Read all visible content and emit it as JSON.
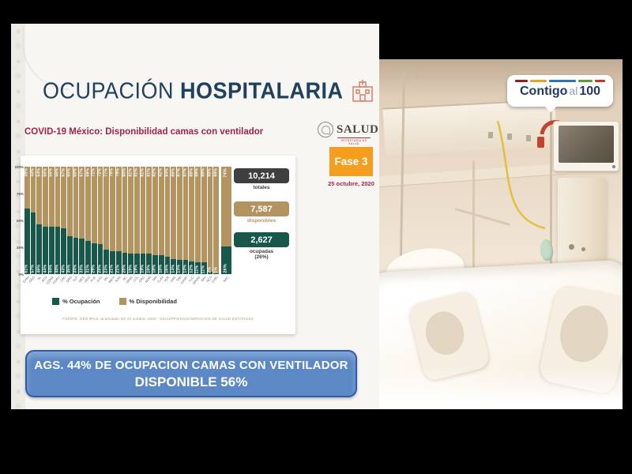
{
  "slide": {
    "title_light": "OCUPACIÓN",
    "title_bold": "HOSPITALARIA",
    "subtitle": "COVID-19 México: Disponibilidad camas con ventilador",
    "salud": {
      "word": "SALUD",
      "sub": "SECRETARÍA DE SALUD"
    },
    "fase_badge": "Fase 3",
    "date": "25 octubre, 2020",
    "stats": [
      {
        "value": "10,214",
        "label": "totales",
        "color": "#3f3f3f"
      },
      {
        "value": "7,587",
        "label": "disponibles",
        "color": "#b3935f"
      },
      {
        "value": "2,627",
        "label": "ocupadas",
        "sublabel": "(26%)",
        "color": "#17584a"
      }
    ],
    "legend": [
      {
        "label": "% Ocupación",
        "color": "#17584a"
      },
      {
        "label": "% Disponibilidad",
        "color": "#b3935f"
      }
    ],
    "source": "FUENTE: RED IRAG, acumulado del 24 octubre, 2020  -  SSA/SPPS/DGIS/SERVICIOS DE SALUD ESTATALES",
    "banner": {
      "line1": "AGS. 44% DE OCUPACION CAMAS CON VENTILADOR",
      "line2": "DISPONIBLE 56%",
      "fill": "#5c88c6",
      "border": "#2d5da9"
    }
  },
  "chart_data": {
    "type": "bar",
    "stacked": true,
    "title": "COVID-19 México: Disponibilidad camas con ventilador",
    "categories": [
      "CHIH",
      "DGO",
      "NL",
      "AGS",
      "CDMX",
      "COAH",
      "ZAC",
      "QRO",
      "SLP",
      "MEX",
      "HGO",
      "PUE",
      "GTO",
      "JAL",
      "MICH",
      "SON",
      "BC",
      "TAMS",
      "COL",
      "GRO",
      "MOR",
      "SIN",
      "TLAX",
      "VER",
      "OAX",
      "TAB",
      "CAMP",
      "YUC",
      "QROO",
      "NAY",
      "BCS",
      "CHIS",
      "NAC"
    ],
    "series": [
      {
        "name": "% Ocupación",
        "color": "#17584a",
        "values": [
          61,
          57,
          46,
          44,
          44,
          44,
          43,
          35,
          34,
          33,
          31,
          29,
          28,
          23,
          21,
          21,
          20,
          19,
          19,
          19,
          19,
          18,
          18,
          16,
          14,
          13,
          13,
          12,
          11,
          11,
          2,
          1,
          26
        ]
      },
      {
        "name": "% Disponibilidad",
        "color": "#b3935f",
        "values": [
          39,
          43,
          54,
          56,
          56,
          56,
          57,
          65,
          66,
          67,
          69,
          71,
          72,
          77,
          79,
          79,
          80,
          81,
          81,
          81,
          81,
          82,
          82,
          84,
          86,
          87,
          87,
          88,
          89,
          89,
          98,
          99,
          74
        ]
      }
    ],
    "y_ticks": [
      "100%",
      "75%",
      "50%",
      "25%",
      "0%"
    ],
    "ylim": [
      0,
      100
    ],
    "grid": false,
    "legend_position": "bottom"
  },
  "photo_logo": {
    "part1": "Contigo",
    "part2": "al",
    "part3": "100"
  }
}
